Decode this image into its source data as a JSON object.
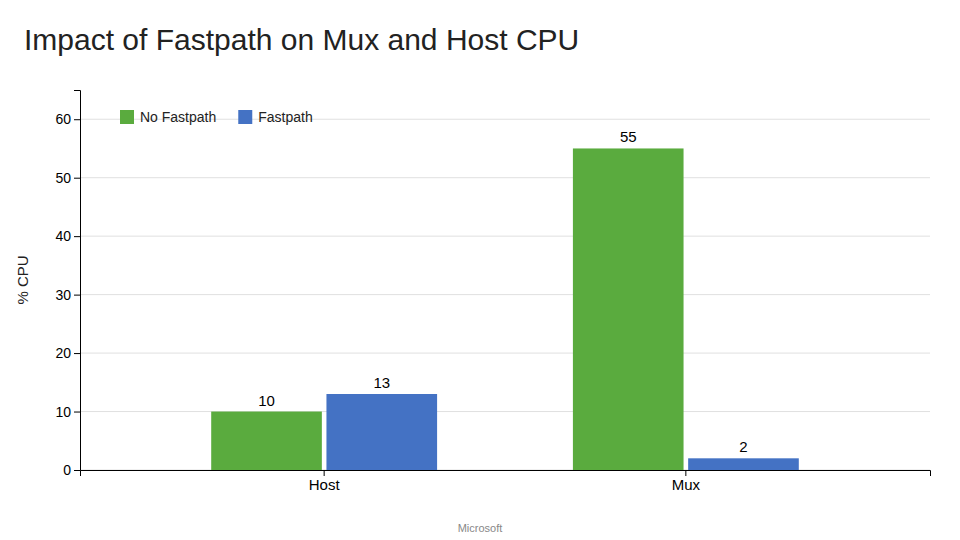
{
  "chart_data": {
    "type": "bar",
    "title": "Impact of Fastpath on Mux and Host CPU",
    "categories": [
      "Host",
      "Mux"
    ],
    "series": [
      {
        "name": "No Fastpath",
        "color": "#5aab3e",
        "values": [
          10,
          55
        ]
      },
      {
        "name": "Fastpath",
        "color": "#4472c4",
        "values": [
          13,
          2
        ]
      }
    ],
    "ylabel": "% CPU",
    "ylim": [
      0,
      65
    ],
    "yticks": [
      0,
      10,
      20,
      30,
      40,
      50,
      60
    ],
    "grid": true,
    "legend": "upper left",
    "data_labels": true,
    "footer": "Microsoft"
  }
}
